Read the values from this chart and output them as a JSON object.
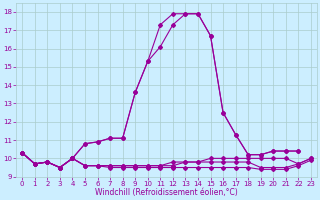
{
  "xlabel": "Windchill (Refroidissement éolien,°C)",
  "x": [
    0,
    1,
    2,
    3,
    4,
    5,
    6,
    7,
    8,
    9,
    10,
    11,
    12,
    13,
    14,
    15,
    16,
    17,
    18,
    19,
    20,
    21,
    22,
    23
  ],
  "line1": [
    10.3,
    9.7,
    9.8,
    9.5,
    10.0,
    10.8,
    10.9,
    11.1,
    11.1,
    13.6,
    15.3,
    16.1,
    17.3,
    17.9,
    17.9,
    16.7,
    12.5,
    11.3,
    10.2,
    10.2,
    10.4,
    10.4,
    10.4,
    null
  ],
  "line2": [
    10.3,
    9.7,
    9.8,
    9.5,
    10.0,
    10.8,
    10.9,
    11.1,
    11.1,
    13.6,
    15.3,
    17.3,
    17.9,
    17.9,
    17.9,
    16.7,
    12.5,
    11.3,
    10.2,
    10.2,
    10.4,
    10.4,
    10.4,
    null
  ],
  "line3": [
    10.3,
    9.7,
    9.8,
    9.5,
    10.0,
    9.6,
    9.6,
    9.6,
    9.6,
    9.6,
    9.6,
    9.6,
    9.8,
    9.8,
    9.8,
    9.8,
    9.8,
    9.8,
    9.8,
    9.5,
    9.5,
    9.5,
    9.7,
    10.0
  ],
  "line4": [
    10.3,
    9.7,
    9.8,
    9.5,
    10.0,
    9.6,
    9.6,
    9.6,
    9.6,
    9.6,
    9.6,
    9.6,
    9.6,
    9.8,
    9.8,
    10.0,
    10.0,
    10.0,
    10.0,
    10.0,
    10.0,
    10.0,
    9.7,
    10.0
  ],
  "line5": [
    10.3,
    9.7,
    9.8,
    9.5,
    10.0,
    9.6,
    9.6,
    9.5,
    9.5,
    9.5,
    9.5,
    9.5,
    9.5,
    9.5,
    9.5,
    9.5,
    9.5,
    9.5,
    9.5,
    9.4,
    9.4,
    9.4,
    9.6,
    9.9
  ],
  "color": "#990099",
  "bg_color": "#cceeff",
  "grid_color": "#aacccc",
  "ylim": [
    9.0,
    18.5
  ],
  "yticks": [
    9,
    10,
    11,
    12,
    13,
    14,
    15,
    16,
    17,
    18
  ],
  "xticks": [
    0,
    1,
    2,
    3,
    4,
    5,
    6,
    7,
    8,
    9,
    10,
    11,
    12,
    13,
    14,
    15,
    16,
    17,
    18,
    19,
    20,
    21,
    22,
    23
  ]
}
